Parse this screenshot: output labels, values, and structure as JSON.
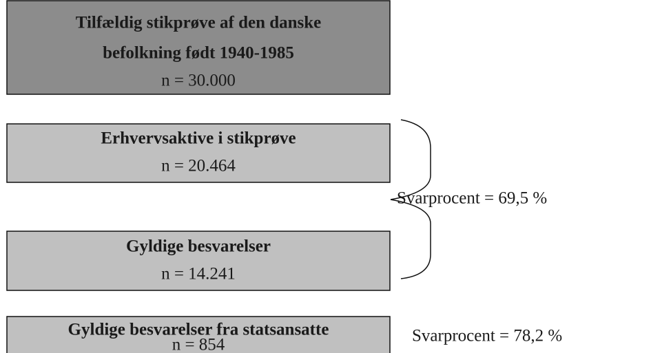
{
  "nodes": [
    {
      "title_lines": [
        "Tilfældig stikprøve af den danske",
        "befolkning født 1940-1985"
      ],
      "n": "n = 30.000"
    },
    {
      "title_lines": [
        "Erhvervsaktive i stikprøve"
      ],
      "n": "n = 20.464"
    },
    {
      "title_lines": [
        "Gyldige besvarelser"
      ],
      "n": "n = 14.241"
    },
    {
      "title_lines": [
        "Gyldige besvarelser fra statsansatte"
      ],
      "n": "n = 854"
    }
  ],
  "annotations": [
    "Svarprocent = 69,5 %",
    "Svarprocent = 78,2 %"
  ]
}
